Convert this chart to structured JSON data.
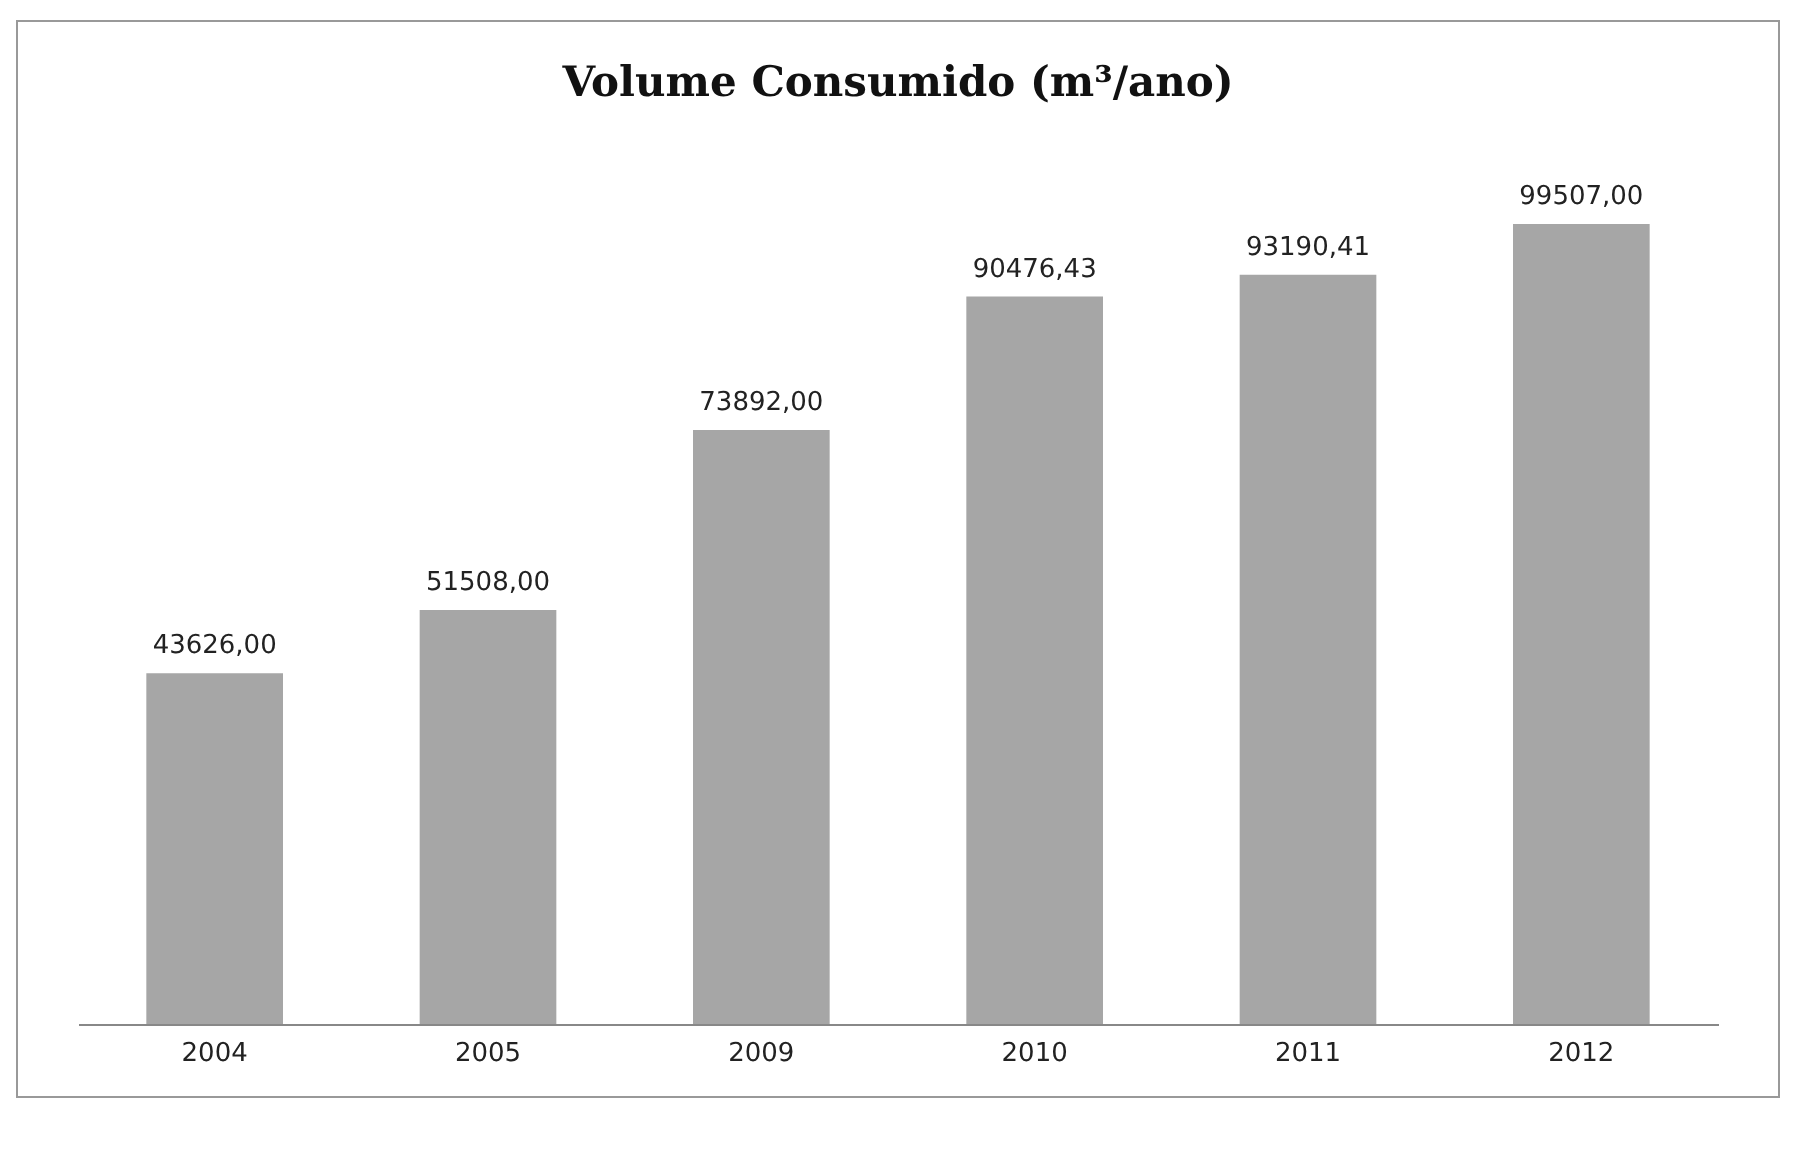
{
  "chart_data": {
    "type": "bar",
    "title": "Volume Consumido (m³/ano)",
    "categories": [
      "2004",
      "2005",
      "2009",
      "2010",
      "2011",
      "2012"
    ],
    "values": [
      43626,
      51508,
      73892,
      90476.43,
      93190.41,
      99507
    ],
    "value_labels": [
      "43626,00",
      "51508,00",
      "73892,00",
      "90476,43",
      "93190,41",
      "99507,00"
    ],
    "color": "#a6a6a6"
  }
}
